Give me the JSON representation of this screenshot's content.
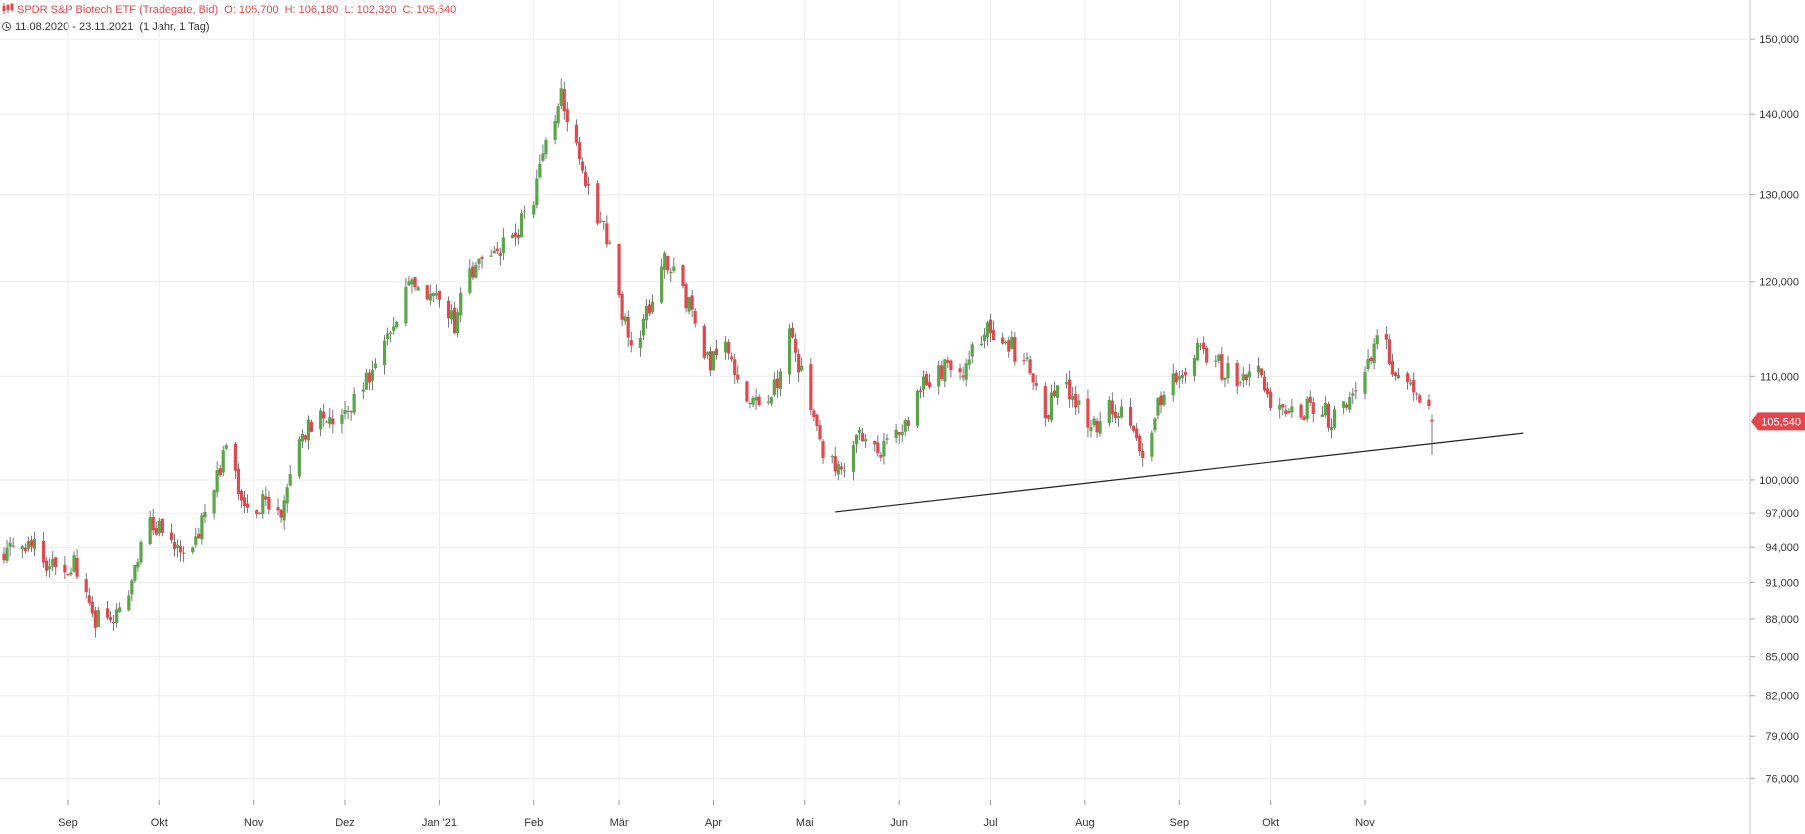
{
  "header": {
    "title": "SPDR S&P Biotech ETF (Tradegate, Bid)",
    "ohlc": [
      {
        "label": "O:",
        "value": "105,700"
      },
      {
        "label": "H:",
        "value": "106,180"
      },
      {
        "label": "L:",
        "value": "102,320"
      },
      {
        "label": "C:",
        "value": "105,540"
      }
    ],
    "date_range": "11.08.2020 - 23.11.2021",
    "period": "(1 Jahr, 1 Tag)"
  },
  "colors": {
    "up": "#5aa54a",
    "down": "#e0484e",
    "wick": "#555555",
    "grid": "#ececec",
    "trendline": "#222222",
    "price_badge": "#e0484e"
  },
  "chart_data": {
    "type": "candlestick",
    "y_scale": "log",
    "ylim": [
      74500,
      155500
    ],
    "y_ticks": [
      "150,000",
      "140,000",
      "130,000",
      "120,000",
      "110,000",
      "100,000",
      "97,000",
      "94,000",
      "91,000",
      "88,000",
      "85,000",
      "82,000",
      "79,000",
      "76,000"
    ],
    "y_tick_values": [
      150000,
      140000,
      130000,
      120000,
      110000,
      100000,
      97000,
      94000,
      91000,
      88000,
      85000,
      82000,
      79000,
      76000
    ],
    "x_range": [
      "2020-08-11",
      "2021-11-23"
    ],
    "x_ticks": [
      {
        "label": "Sep",
        "date": "2020-09-01"
      },
      {
        "label": "Okt",
        "date": "2020-10-01"
      },
      {
        "label": "Nov",
        "date": "2020-11-01"
      },
      {
        "label": "Dez",
        "date": "2020-12-01"
      },
      {
        "label": "Jan '21",
        "date": "2021-01-01"
      },
      {
        "label": "Feb",
        "date": "2021-02-01"
      },
      {
        "label": "Mär",
        "date": "2021-03-01"
      },
      {
        "label": "Apr",
        "date": "2021-04-01"
      },
      {
        "label": "Mai",
        "date": "2021-05-01"
      },
      {
        "label": "Jun",
        "date": "2021-06-01"
      },
      {
        "label": "Jul",
        "date": "2021-07-01"
      },
      {
        "label": "Aug",
        "date": "2021-08-01"
      },
      {
        "label": "Sep",
        "date": "2021-09-01"
      },
      {
        "label": "Okt",
        "date": "2021-10-01"
      },
      {
        "label": "Nov",
        "date": "2021-11-01"
      }
    ],
    "path": [
      [
        "2020-08-11",
        93500
      ],
      [
        "2020-08-20",
        94000
      ],
      [
        "2020-08-28",
        92000
      ],
      [
        "2020-09-04",
        92500
      ],
      [
        "2020-09-10",
        88000
      ],
      [
        "2020-09-17",
        88000
      ],
      [
        "2020-09-21",
        90500
      ],
      [
        "2020-09-28",
        96500
      ],
      [
        "2020-10-02",
        95000
      ],
      [
        "2020-10-08",
        93000
      ],
      [
        "2020-10-15",
        96000
      ],
      [
        "2020-10-20",
        100500
      ],
      [
        "2020-10-23",
        103500
      ],
      [
        "2020-10-30",
        96500
      ],
      [
        "2020-11-05",
        98500
      ],
      [
        "2020-11-10",
        97000
      ],
      [
        "2020-11-16",
        104500
      ],
      [
        "2020-11-23",
        105500
      ],
      [
        "2020-11-30",
        106000
      ],
      [
        "2020-12-08",
        109500
      ],
      [
        "2020-12-15",
        115000
      ],
      [
        "2020-12-22",
        119500
      ],
      [
        "2021-01-01",
        118500
      ],
      [
        "2021-01-06",
        115000
      ],
      [
        "2021-01-11",
        121500
      ],
      [
        "2021-01-20",
        124000
      ],
      [
        "2021-01-26",
        125000
      ],
      [
        "2021-02-01",
        130000
      ],
      [
        "2021-02-05",
        136000
      ],
      [
        "2021-02-10",
        142000
      ],
      [
        "2021-02-17",
        133000
      ],
      [
        "2021-02-25",
        125000
      ],
      [
        "2021-03-04",
        114000
      ],
      [
        "2021-03-09",
        115000
      ],
      [
        "2021-03-15",
        122500
      ],
      [
        "2021-03-22",
        119000
      ],
      [
        "2021-03-30",
        111500
      ],
      [
        "2021-04-06",
        113000
      ],
      [
        "2021-04-12",
        107500
      ],
      [
        "2021-04-20",
        108000
      ],
      [
        "2021-04-26",
        114000
      ],
      [
        "2021-05-03",
        107500
      ],
      [
        "2021-05-08",
        102000
      ],
      [
        "2021-05-12",
        101000
      ],
      [
        "2021-05-18",
        104000
      ],
      [
        "2021-05-24",
        102500
      ],
      [
        "2021-06-01",
        104000
      ],
      [
        "2021-06-08",
        109000
      ],
      [
        "2021-06-16",
        111000
      ],
      [
        "2021-06-23",
        111000
      ],
      [
        "2021-06-30",
        115000
      ],
      [
        "2021-07-06",
        114000
      ],
      [
        "2021-07-13",
        111000
      ],
      [
        "2021-07-19",
        106500
      ],
      [
        "2021-07-26",
        109500
      ],
      [
        "2021-08-02",
        104500
      ],
      [
        "2021-08-09",
        107000
      ],
      [
        "2021-08-16",
        105500
      ],
      [
        "2021-08-20",
        101500
      ],
      [
        "2021-08-26",
        108000
      ],
      [
        "2021-09-01",
        110000
      ],
      [
        "2021-09-08",
        113000
      ],
      [
        "2021-09-14",
        111000
      ],
      [
        "2021-09-20",
        109500
      ],
      [
        "2021-09-27",
        111000
      ],
      [
        "2021-10-01",
        107000
      ],
      [
        "2021-10-08",
        106500
      ],
      [
        "2021-10-15",
        107000
      ],
      [
        "2021-10-20",
        106000
      ],
      [
        "2021-10-26",
        106500
      ],
      [
        "2021-11-01",
        110000
      ],
      [
        "2021-11-05",
        115000
      ],
      [
        "2021-11-10",
        111000
      ],
      [
        "2021-11-16",
        109500
      ],
      [
        "2021-11-23",
        105540
      ]
    ],
    "trendline": {
      "from": [
        "2021-05-11",
        97100
      ],
      "to": [
        "2021-12-23",
        104400
      ]
    },
    "last_price": {
      "label": "105,540",
      "value": 105540
    }
  }
}
